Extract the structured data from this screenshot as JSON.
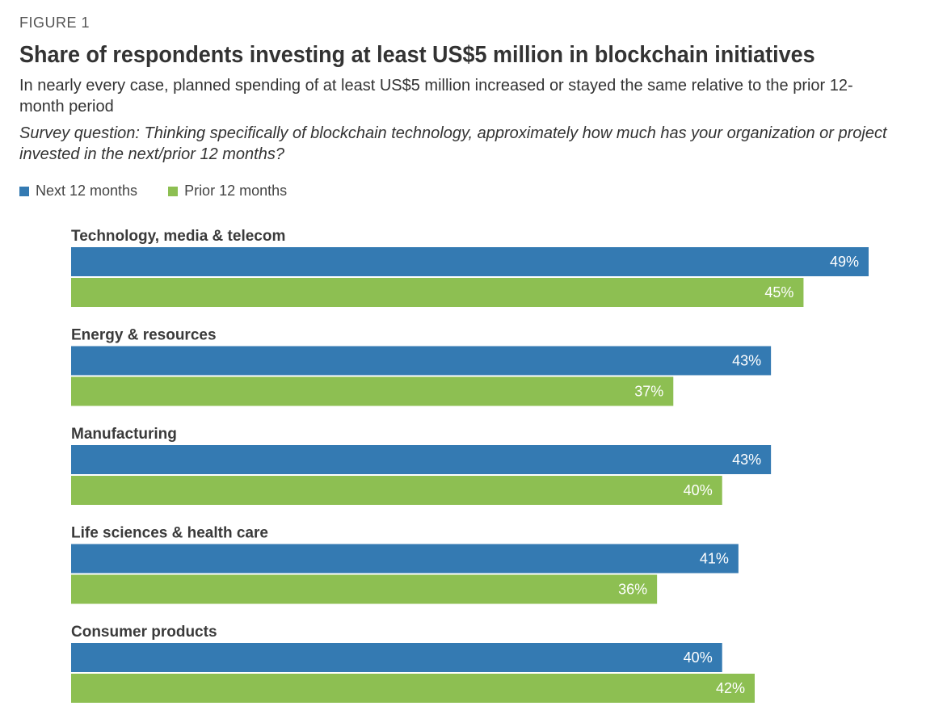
{
  "figure_label": "FIGURE 1",
  "title": "Share of respondents investing at least US$5 million in blockchain initiatives",
  "subtitle": "In nearly every case, planned spending of at least US$5 million increased or stayed the same relative to the prior 12-month period",
  "survey_question": "Survey question: Thinking specifically of blockchain technology, approximately how much has your organization or project invested in the next/prior 12 months?",
  "colors": {
    "next": "#347AB2",
    "prior": "#8DBF52"
  },
  "chart_data": {
    "type": "bar",
    "orientation": "horizontal",
    "title": "Share of respondents investing at least US$5 million in blockchain initiatives",
    "categories": [
      "Technology, media & telecom",
      "Energy & resources",
      "Manufacturing",
      "Life sciences & health care",
      "Consumer products"
    ],
    "series": [
      {
        "name": "Next 12 months",
        "values": [
          49,
          43,
          43,
          41,
          40
        ],
        "labels": [
          "49%",
          "43%",
          "43%",
          "41%",
          "40%"
        ]
      },
      {
        "name": "Prior 12 months",
        "values": [
          45,
          37,
          40,
          36,
          42
        ],
        "labels": [
          "45%",
          "37%",
          "40%",
          "36%",
          "42%"
        ]
      }
    ],
    "xlim": [
      0,
      49
    ],
    "legend": "top-left",
    "grid": false
  }
}
